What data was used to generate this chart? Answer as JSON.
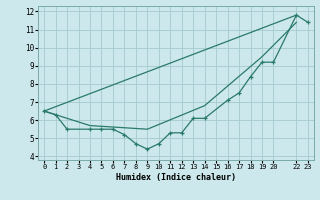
{
  "xlabel": "Humidex (Indice chaleur)",
  "background_color": "#cce8ec",
  "grid_color": "#aacdd4",
  "line_color": "#2a7a6a",
  "xlim": [
    -0.5,
    23.5
  ],
  "ylim": [
    3.8,
    12.3
  ],
  "xticks": [
    0,
    1,
    2,
    3,
    4,
    5,
    6,
    7,
    8,
    9,
    10,
    11,
    12,
    13,
    14,
    15,
    16,
    17,
    18,
    19,
    20,
    22,
    23
  ],
  "xtick_labels": [
    "0",
    "1",
    "2",
    "3",
    "4",
    "5",
    "6",
    "7",
    "8",
    "9",
    "10",
    "11",
    "12",
    "13",
    "14",
    "15",
    "16",
    "17",
    "18",
    "19",
    "20",
    "22",
    "23"
  ],
  "yticks": [
    4,
    5,
    6,
    7,
    8,
    9,
    10,
    11,
    12
  ],
  "line1_x": [
    0,
    1,
    2,
    4,
    5,
    6,
    7,
    8,
    9,
    10,
    11,
    12,
    13,
    14,
    16,
    17,
    18,
    19,
    20,
    22,
    23
  ],
  "line1_y": [
    6.5,
    6.3,
    5.5,
    5.5,
    5.5,
    5.5,
    5.2,
    4.7,
    4.4,
    4.7,
    5.3,
    5.3,
    6.1,
    6.1,
    7.1,
    7.5,
    8.4,
    9.2,
    9.2,
    11.8,
    11.4
  ],
  "line2_x": [
    0,
    22
  ],
  "line2_y": [
    6.5,
    11.8
  ],
  "line3_x": [
    0,
    4,
    9,
    14,
    19,
    22
  ],
  "line3_y": [
    6.5,
    5.7,
    5.5,
    6.8,
    9.5,
    11.4
  ]
}
